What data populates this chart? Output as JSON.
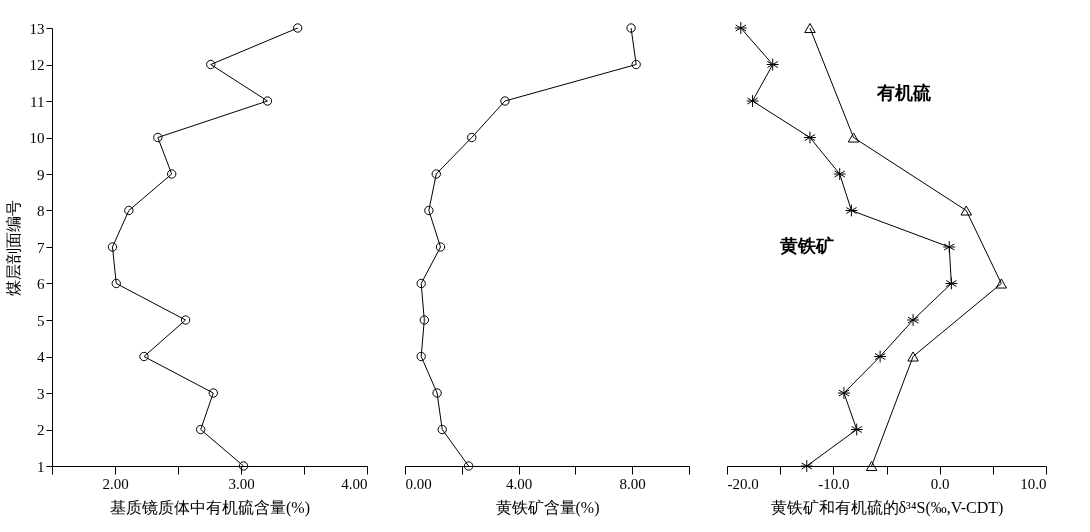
{
  "chart_data": [
    {
      "type": "line",
      "xlabel": "基质镜质体中有机硫含量(%)",
      "ylabel": "煤层剖面编号",
      "xlim": [
        1.5,
        4.0
      ],
      "xticks": [
        {
          "value": 1.5,
          "label": null
        },
        {
          "value": 2,
          "label": "2.00"
        },
        {
          "value": 2.5,
          "label": null
        },
        {
          "value": 3,
          "label": "3.00"
        },
        {
          "value": 3.5,
          "label": null
        },
        {
          "value": 4,
          "label": "4.00"
        }
      ],
      "ylim": [
        1,
        13
      ],
      "yticks": [
        1,
        2,
        3,
        4,
        5,
        6,
        7,
        8,
        9,
        10,
        11,
        12,
        13
      ],
      "grid": false,
      "series": [
        {
          "color": "#000000",
          "marker": "circle",
          "x": [
            3.45,
            2.76,
            3.21,
            2.34,
            2.45,
            2.11,
            1.98,
            2.01,
            2.56,
            2.23,
            2.78,
            2.68,
            3.02
          ],
          "values": [
            13,
            12,
            11,
            10,
            9,
            8,
            7,
            6,
            5,
            4,
            3,
            2,
            1
          ]
        }
      ]
    },
    {
      "type": "line",
      "xlabel": "黄铁矿含量(%)",
      "xlim": [
        0,
        10
      ],
      "xticks": [
        {
          "value": 0,
          "label": "0.00"
        },
        {
          "value": 2,
          "label": null
        },
        {
          "value": 4,
          "label": "4.00"
        },
        {
          "value": 6,
          "label": null
        },
        {
          "value": 8,
          "label": "8.00"
        },
        {
          "value": 10,
          "label": null
        }
      ],
      "ylim": [
        1,
        13
      ],
      "tick_labels": "x",
      "grid": false,
      "series": [
        {
          "color": "#000000",
          "marker": "circle",
          "x": [
            7.96,
            8.14,
            3.52,
            2.35,
            1.1,
            0.84,
            1.25,
            0.57,
            0.68,
            0.57,
            1.13,
            1.31,
            2.24
          ],
          "values": [
            13,
            12,
            11,
            10,
            9,
            8,
            7,
            6,
            5,
            4,
            3,
            2,
            1
          ]
        }
      ]
    },
    {
      "type": "line",
      "xlabel": "黄铁矿和有机硫的δ³⁴S(‰,V-CDT)",
      "xlim": [
        -20,
        10
      ],
      "xticks": [
        {
          "value": -20,
          "label": "-20.0"
        },
        {
          "value": -15,
          "label": null
        },
        {
          "value": -10,
          "label": "-10.0"
        },
        {
          "value": -5,
          "label": null
        },
        {
          "value": 0,
          "label": "0.0"
        },
        {
          "value": 5,
          "label": null
        },
        {
          "value": 10,
          "label": "10.0"
        }
      ],
      "ylim": [
        1,
        13
      ],
      "tick_labels": "x",
      "grid": false,
      "series": [
        {
          "name": "黄铁矿",
          "color": "#000000",
          "marker": "cross",
          "x": [
            -18.7,
            -15.7,
            -17.6,
            -12.2,
            -9.4,
            -8.3,
            0.9,
            1.1,
            -2.5,
            -5.6,
            -9.0,
            -7.8,
            -12.5
          ],
          "values": [
            13,
            12,
            11,
            10,
            9,
            8,
            7,
            6,
            5,
            4,
            3,
            2,
            1
          ]
        },
        {
          "name": "有机硫",
          "color": "#000000",
          "marker": "triangle",
          "x": [
            -12.2,
            -8.1,
            2.5,
            5.8,
            -2.5,
            -6.4
          ],
          "values": [
            13,
            10,
            8,
            6,
            4,
            1
          ]
        }
      ]
    }
  ]
}
